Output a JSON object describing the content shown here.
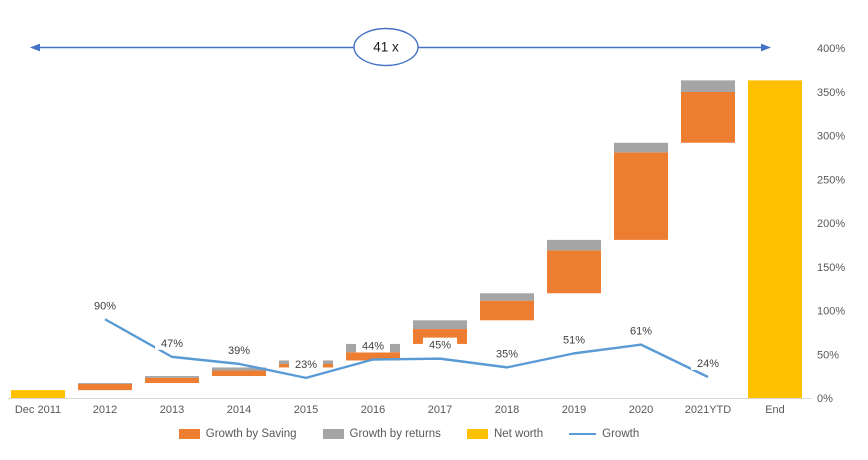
{
  "annotation": {
    "label": "41 x"
  },
  "colors": {
    "saving_orange": "#ED7D31",
    "returns_gray": "#A5A5A5",
    "net_worth_yellow": "#FFC000",
    "growth_line_blue": "#5B9BD5",
    "arrow_blue": "#4472C4",
    "axis_text": "#595959",
    "data_label_text": "#3F3F3F",
    "axis_line": "#D9D9D9",
    "background": "#FFFFFF"
  },
  "legend": {
    "items": [
      {
        "label": "Growth by Saving",
        "color": "#ED7D31",
        "swatch": "box"
      },
      {
        "label": "Growth by returns",
        "color": "#A5A5A5",
        "swatch": "box"
      },
      {
        "label": "Net worth",
        "color": "#FFC000",
        "swatch": "box"
      },
      {
        "label": "Growth",
        "color": "#5B9BD5",
        "swatch": "line"
      }
    ]
  },
  "chart_data": {
    "type": "combo-waterfall-line",
    "title": "",
    "multiplier_annotation": "41 x",
    "categories": [
      "Dec 2011",
      "2012",
      "2013",
      "2014",
      "2015",
      "2016",
      "2017",
      "2018",
      "2019",
      "2020",
      "2021YTD",
      "End"
    ],
    "y_axis": {
      "side": "right",
      "min": 0,
      "max": 400,
      "tick_step": 50,
      "tick_values": [
        0,
        50,
        100,
        150,
        200,
        250,
        300,
        350,
        400
      ],
      "tick_labels": [
        "0%",
        "50%",
        "100%",
        "150%",
        "200%",
        "250%",
        "300%",
        "350%",
        "400%"
      ],
      "grid": false
    },
    "waterfall_bars": [
      {
        "category": "Dec 2011",
        "type": "net_worth",
        "from": 0,
        "to": 9
      },
      {
        "category": "2012",
        "type": "growth",
        "from": 9,
        "saving": 7.1,
        "returns": 1.0
      },
      {
        "category": "2013",
        "type": "growth",
        "from": 17.1,
        "saving": 6.0,
        "returns": 2.0
      },
      {
        "category": "2014",
        "type": "growth",
        "from": 25.1,
        "saving": 6.3,
        "returns": 3.5
      },
      {
        "category": "2015",
        "type": "growth",
        "from": 34.9,
        "saving": 4.0,
        "returns": 4.0
      },
      {
        "category": "2016",
        "type": "growth",
        "from": 42.9,
        "saving": 9.4,
        "returns": 9.5
      },
      {
        "category": "2017",
        "type": "growth",
        "from": 61.8,
        "saving": 17.0,
        "returns": 10.0
      },
      {
        "category": "2018",
        "type": "growth",
        "from": 88.8,
        "saving": 22.4,
        "returns": 8.5
      },
      {
        "category": "2019",
        "type": "growth",
        "from": 119.7,
        "saving": 49.0,
        "returns": 12.0
      },
      {
        "category": "2020",
        "type": "growth",
        "from": 180.7,
        "saving": 100.0,
        "returns": 11.0
      },
      {
        "category": "2021YTD",
        "type": "growth",
        "from": 291.7,
        "saving": 58.0,
        "returns": 13.3
      },
      {
        "category": "End",
        "type": "net_worth",
        "from": 0,
        "to": 363
      }
    ],
    "growth_line": {
      "name": "Growth",
      "categories": [
        "2012",
        "2013",
        "2014",
        "2015",
        "2016",
        "2017",
        "2018",
        "2019",
        "2020",
        "2021YTD"
      ],
      "values_pct": [
        90,
        47,
        39,
        23,
        44,
        45,
        35,
        51,
        61,
        24
      ],
      "labels": [
        "90%",
        "47%",
        "39%",
        "23%",
        "44%",
        "45%",
        "35%",
        "51%",
        "61%",
        "24%"
      ]
    }
  }
}
